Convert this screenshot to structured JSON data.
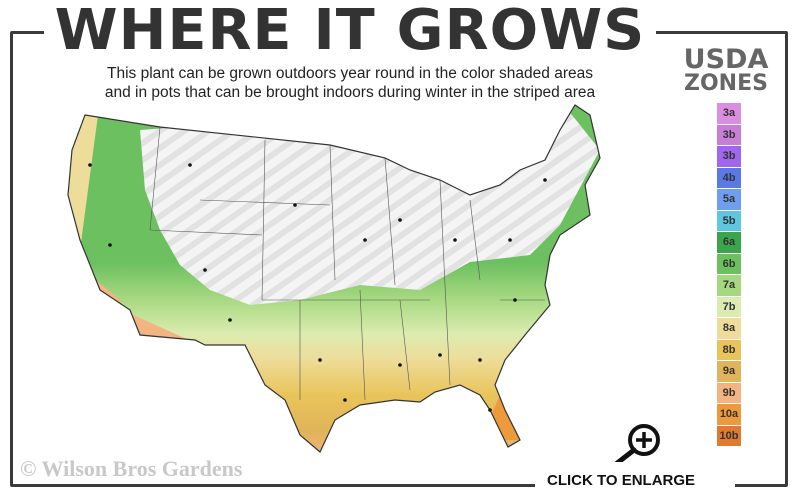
{
  "title": "WHERE IT GROWS",
  "subtitle_line1": "This plant can be grown outdoors year round in the color shaded areas",
  "subtitle_line2": "and in pots that can be brought indoors during winter in the striped area",
  "legend": {
    "title_line1": "USDA",
    "title_line2": "ZONES",
    "zones": [
      {
        "label": "3a",
        "color": "#d98ee0"
      },
      {
        "label": "3b",
        "color": "#c77fd6"
      },
      {
        "label": "3b",
        "color": "#a066ee"
      },
      {
        "label": "4b",
        "color": "#5a78e6"
      },
      {
        "label": "5a",
        "color": "#6f9ef0"
      },
      {
        "label": "5b",
        "color": "#5fc6e0"
      },
      {
        "label": "6a",
        "color": "#3aa54a"
      },
      {
        "label": "6b",
        "color": "#6cc060"
      },
      {
        "label": "7a",
        "color": "#a6d880"
      },
      {
        "label": "7b",
        "color": "#dcecb0"
      },
      {
        "label": "8a",
        "color": "#eedc9a"
      },
      {
        "label": "8b",
        "color": "#e9c45a"
      },
      {
        "label": "9a",
        "color": "#e0b45a"
      },
      {
        "label": "9b",
        "color": "#f2b480"
      },
      {
        "label": "10a",
        "color": "#ec9a3c"
      },
      {
        "label": "10b",
        "color": "#e07a30"
      }
    ]
  },
  "copyright": "© Wilson Bros Gardens",
  "enlarge_label": "CLICK TO ENLARGE",
  "icons": {
    "enlarge": "magnifier-plus-icon"
  }
}
